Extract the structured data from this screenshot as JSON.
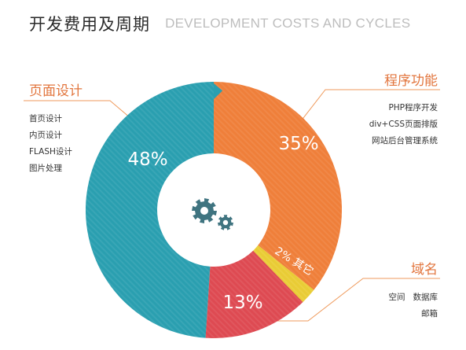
{
  "header": {
    "title_cn": "开发费用及周期",
    "title_en": "DEVELOPMENT COSTS AND CYCLES"
  },
  "colors": {
    "blue": "#2a9fb0",
    "orange": "#ef7f3a",
    "yellow": "#e9cc35",
    "red": "#de4a52",
    "accent_text": "#e2753d",
    "line": "#ef9a5c",
    "gear": "#3f7480"
  },
  "chart_data": {
    "type": "pie",
    "style": "donut",
    "slices": [
      {
        "label": "程序功能",
        "value": 35,
        "display": "35%",
        "color": "#ef7f3a"
      },
      {
        "label": "其它",
        "value": 2,
        "display": "2% 其它",
        "color": "#e9cc35"
      },
      {
        "label": "域名",
        "value": 13,
        "display": "13%",
        "color": "#de4a52"
      },
      {
        "label": "页面设计",
        "value": 48,
        "display": "48%",
        "color": "#2a9fb0"
      }
    ],
    "center_icon": "gears-icon"
  },
  "categories": {
    "page_design": {
      "title": "页面设计",
      "items": [
        "首页设计",
        "内页设计",
        "FLASH设计",
        "图片处理"
      ]
    },
    "program": {
      "title": "程序功能",
      "items": [
        "PHP程序开发",
        "div+CSS页面排版",
        "网站后台管理系统"
      ]
    },
    "domain": {
      "title": "域名",
      "items": [
        "空间",
        "数据库",
        "邮箱"
      ]
    }
  }
}
